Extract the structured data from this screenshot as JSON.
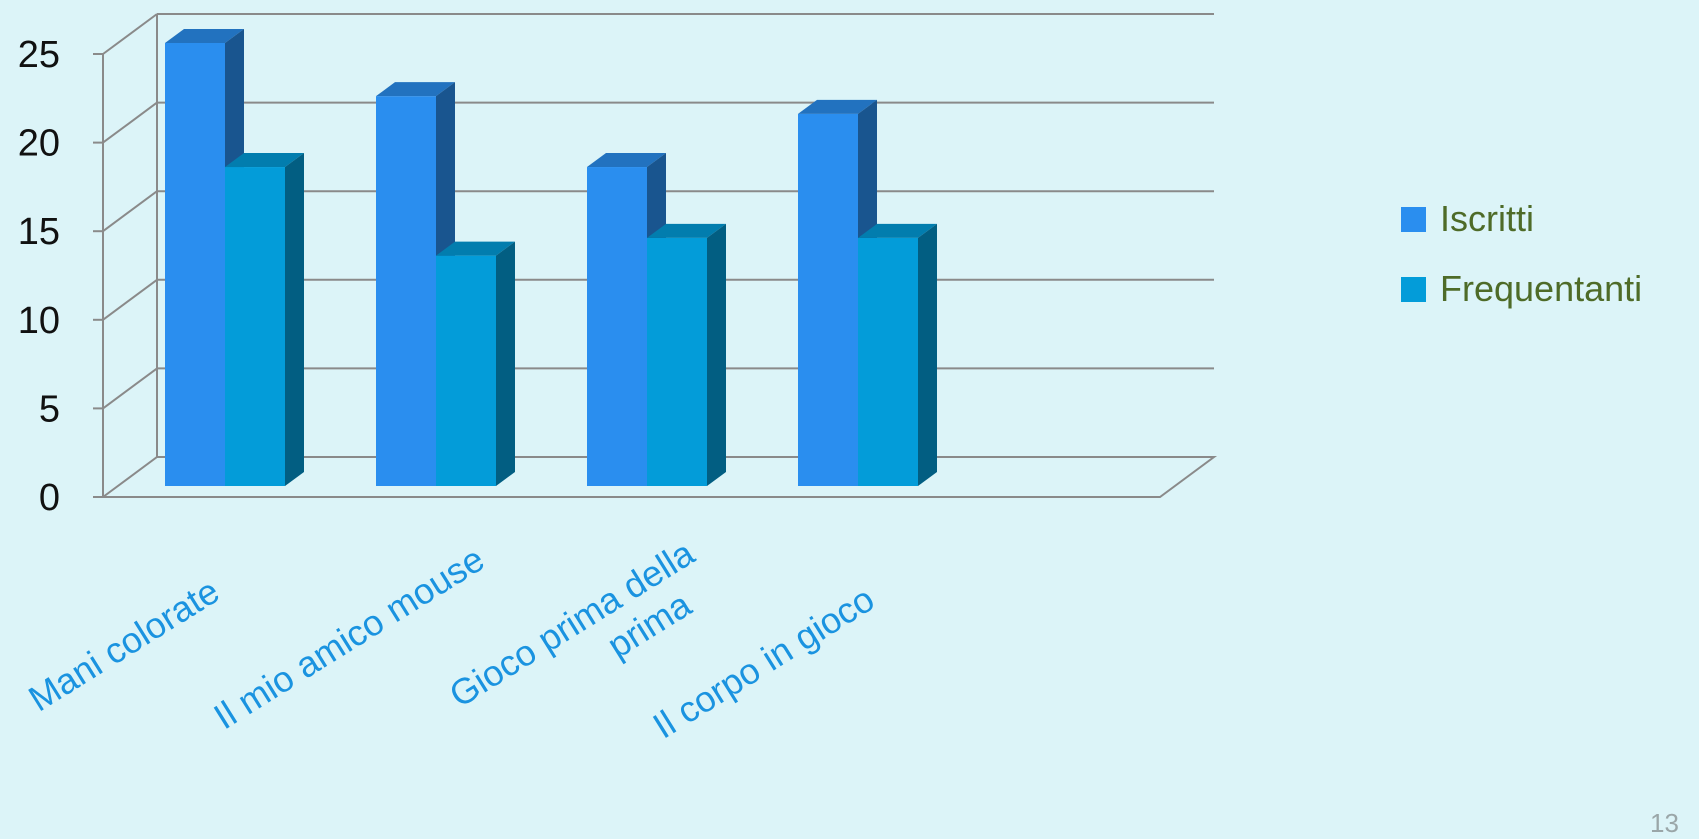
{
  "chart_data": {
    "type": "bar",
    "categories": [
      [
        "Mani colorate"
      ],
      [
        "Il mio amico mouse"
      ],
      [
        "Gioco prima della",
        "prima"
      ],
      [
        "Il corpo in gioco"
      ]
    ],
    "series": [
      {
        "name": "Iscritti",
        "values": [
          25,
          22,
          18,
          21
        ],
        "color": "#2a8eef"
      },
      {
        "name": "Frequentanti",
        "values": [
          18,
          13,
          14,
          14
        ],
        "color": "#039cd9"
      }
    ],
    "yticks": [
      "0",
      "5",
      "10",
      "15",
      "20",
      "25"
    ],
    "ylim": [
      0,
      25
    ],
    "grid": true,
    "legend": "right",
    "three_d": true,
    "tick_color": "#111111",
    "category_label_color": "#1a93e0",
    "legend_text_color": "#4e6b28"
  },
  "page_number": "13"
}
